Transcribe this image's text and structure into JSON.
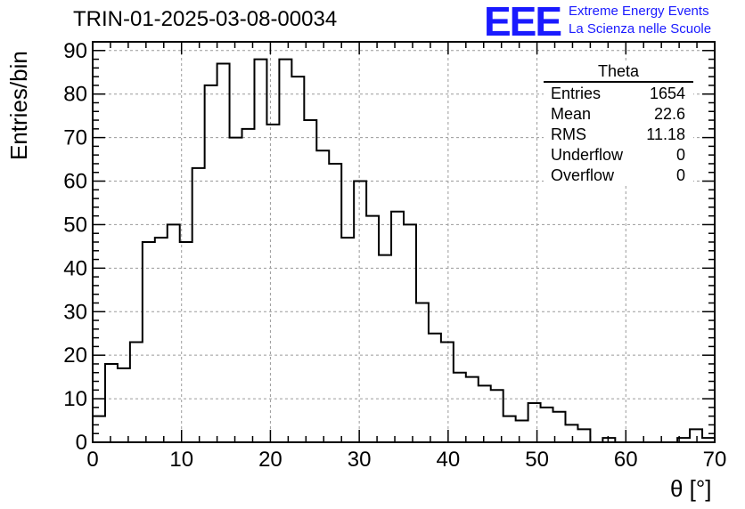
{
  "chart_data": {
    "type": "histogram",
    "title": "TRIN-01-2025-03-08-00034",
    "xlabel": "θ [°]",
    "ylabel": "Entries/bin",
    "xlim": [
      0,
      70
    ],
    "ylim": [
      0,
      92
    ],
    "bin_width": 1.4,
    "xticks": [
      0,
      10,
      20,
      30,
      40,
      50,
      60,
      70
    ],
    "yticks": [
      0,
      10,
      20,
      30,
      40,
      50,
      60,
      70,
      80,
      90
    ],
    "grid": true,
    "bin_low_edges": [
      0.0,
      1.4,
      2.8,
      4.2,
      5.6,
      7.0,
      8.4,
      9.8,
      11.2,
      12.6,
      14.0,
      15.4,
      16.8,
      18.2,
      19.6,
      21.0,
      22.4,
      23.8,
      25.2,
      26.6,
      28.0,
      29.4,
      30.8,
      32.2,
      33.6,
      35.0,
      36.4,
      37.8,
      39.2,
      40.6,
      42.0,
      43.4,
      44.8,
      46.2,
      47.6,
      49.0,
      50.4,
      51.8,
      53.2,
      54.6,
      56.0,
      57.4,
      58.8,
      60.2,
      61.6,
      63.0,
      64.4,
      65.8,
      67.2,
      68.6
    ],
    "values": [
      6,
      18,
      17,
      23,
      46,
      47,
      50,
      46,
      63,
      82,
      87,
      70,
      72,
      88,
      73,
      88,
      84,
      74,
      67,
      64,
      47,
      60,
      52,
      43,
      53,
      50,
      32,
      25,
      23,
      16,
      15,
      13,
      12,
      6,
      5,
      9,
      8,
      7,
      4,
      3,
      0,
      1,
      0,
      0,
      0,
      0,
      0,
      1,
      3,
      1
    ]
  },
  "stats_box": {
    "title": "Theta",
    "rows": [
      {
        "label": "Entries",
        "value": "1654"
      },
      {
        "label": "Mean",
        "value": "22.6"
      },
      {
        "label": "RMS",
        "value": "11.18"
      },
      {
        "label": "Underflow",
        "value": "0"
      },
      {
        "label": "Overflow",
        "value": "0"
      }
    ]
  },
  "logo": {
    "mark": "EEE",
    "line1": "Extreme Energy Events",
    "line2": "La Scienza nelle Scuole"
  },
  "colors": {
    "line": "#000000",
    "grid": "#9a9a9a",
    "logo": "#1a1aff"
  }
}
